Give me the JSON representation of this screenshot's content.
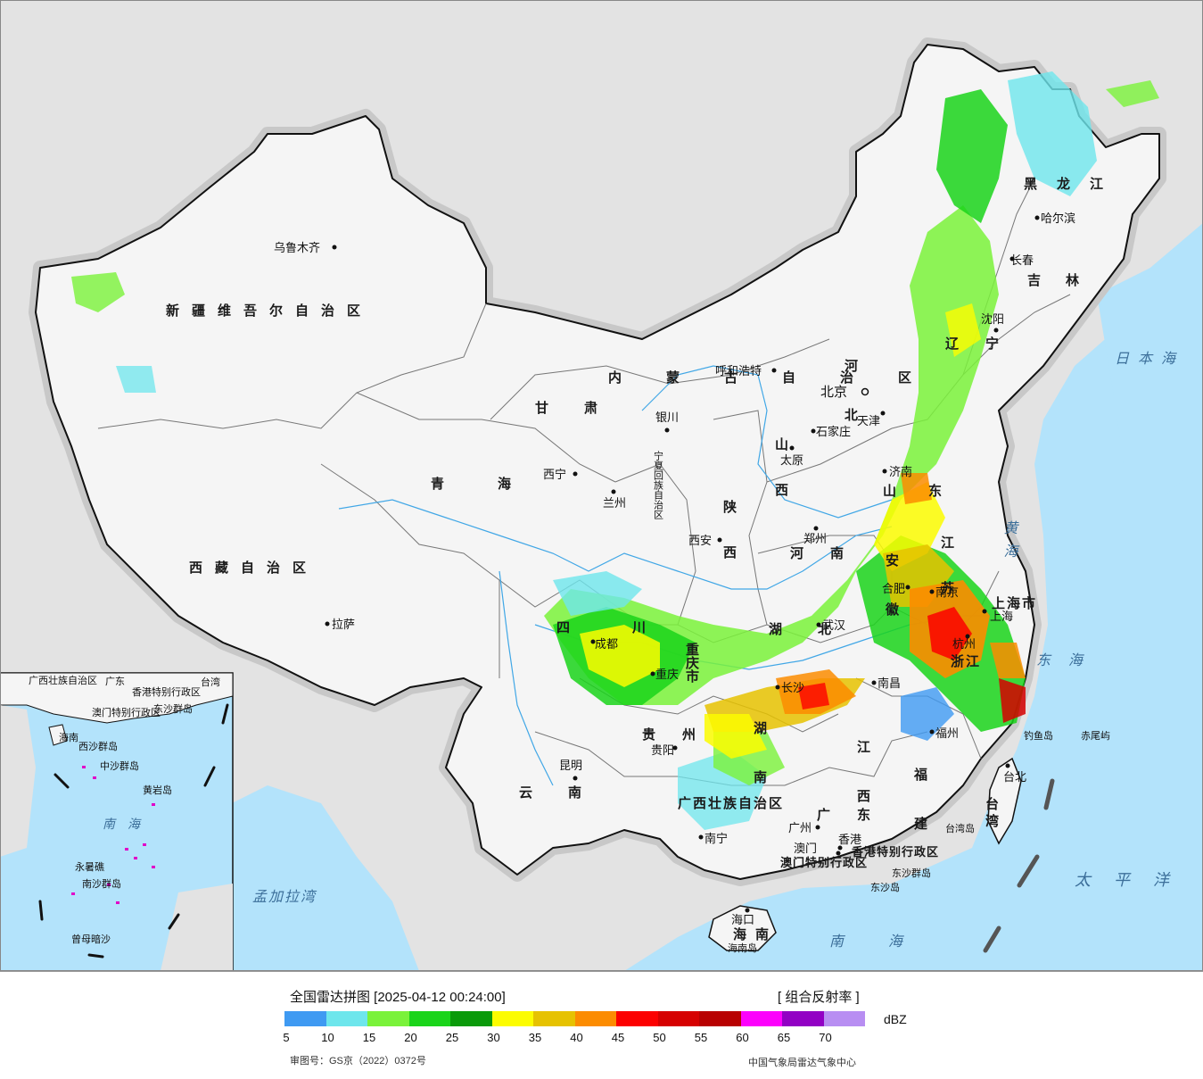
{
  "legend": {
    "title": "全国雷达拼图 [2025-04-12 00:24:00]",
    "product": "[ 组合反射率 ]",
    "unit": "dBZ",
    "colors": [
      "#3f9af2",
      "#6ee6ec",
      "#7af23a",
      "#1ad41a",
      "#0a9a0a",
      "#fcfc00",
      "#e6c200",
      "#fc8c00",
      "#fc0000",
      "#d60000",
      "#b80000",
      "#fc00fc",
      "#9200c4",
      "#b88ef2"
    ],
    "ticks": [
      "5",
      "10",
      "15",
      "20",
      "25",
      "30",
      "35",
      "40",
      "45",
      "50",
      "55",
      "60",
      "65",
      "70"
    ],
    "review_number": "审图号：GS京（2022）0372号",
    "source": "中国气象局雷达气象中心"
  },
  "map": {
    "provinces": [
      {
        "name": "新疆维吾尔自治区"
      },
      {
        "name": "西藏自治区"
      },
      {
        "name": "青海"
      },
      {
        "name": "甘肃"
      },
      {
        "name": "内蒙古自治区"
      },
      {
        "name": "黑龙江"
      },
      {
        "name": "吉林"
      },
      {
        "name": "辽宁"
      },
      {
        "name": "河北"
      },
      {
        "name": "山西"
      },
      {
        "name": "陕西"
      },
      {
        "name": "河南"
      },
      {
        "name": "山东"
      },
      {
        "name": "江苏"
      },
      {
        "name": "安徽"
      },
      {
        "name": "湖北"
      },
      {
        "name": "湖南"
      },
      {
        "name": "四川"
      },
      {
        "name": "重庆市"
      },
      {
        "name": "贵州"
      },
      {
        "name": "云南"
      },
      {
        "name": "江西"
      },
      {
        "name": "浙江"
      },
      {
        "name": "福建"
      },
      {
        "name": "广东"
      },
      {
        "name": "广西壮族自治区"
      },
      {
        "name": "海南"
      },
      {
        "name": "台湾"
      },
      {
        "name": "上海市"
      },
      {
        "name": "宁夏回族自治区"
      },
      {
        "name": "香港特别行政区"
      },
      {
        "name": "澳门特别行政区"
      }
    ],
    "cities": [
      {
        "name": "乌鲁木齐"
      },
      {
        "name": "拉萨"
      },
      {
        "name": "西宁"
      },
      {
        "name": "兰州"
      },
      {
        "name": "银川"
      },
      {
        "name": "呼和浩特"
      },
      {
        "name": "北京"
      },
      {
        "name": "天津"
      },
      {
        "name": "石家庄"
      },
      {
        "name": "太原"
      },
      {
        "name": "济南"
      },
      {
        "name": "郑州"
      },
      {
        "name": "西安"
      },
      {
        "name": "哈尔滨"
      },
      {
        "name": "长春"
      },
      {
        "name": "沈阳"
      },
      {
        "name": "合肥"
      },
      {
        "name": "南京"
      },
      {
        "name": "杭州"
      },
      {
        "name": "武汉"
      },
      {
        "name": "长沙"
      },
      {
        "name": "成都"
      },
      {
        "name": "重庆"
      },
      {
        "name": "贵阳"
      },
      {
        "name": "昆明"
      },
      {
        "name": "南宁"
      },
      {
        "name": "广州"
      },
      {
        "name": "香港"
      },
      {
        "name": "澳门"
      },
      {
        "name": "海口"
      },
      {
        "name": "福州"
      },
      {
        "name": "南昌"
      },
      {
        "name": "台北"
      },
      {
        "name": "上海"
      }
    ],
    "seas": [
      {
        "name": "日本海"
      },
      {
        "name": "黄海"
      },
      {
        "name": "东海"
      },
      {
        "name": "太平洋"
      },
      {
        "name": "南海"
      },
      {
        "name": "孟加拉湾"
      }
    ],
    "islands": [
      {
        "name": "钓鱼岛"
      },
      {
        "name": "赤尾屿"
      },
      {
        "name": "台湾岛"
      },
      {
        "name": "东沙群岛"
      },
      {
        "name": "东沙岛"
      },
      {
        "name": "海南岛"
      }
    ],
    "inset": {
      "labels": [
        "广西壮族自治区",
        "广东",
        "台湾",
        "香港特别行政区",
        "澳门特别行政区",
        "东沙群岛",
        "海南",
        "西沙群岛",
        "中沙群岛",
        "黄岩岛",
        "南海",
        "永暑礁",
        "南沙群岛",
        "曾母暗沙"
      ]
    }
  }
}
